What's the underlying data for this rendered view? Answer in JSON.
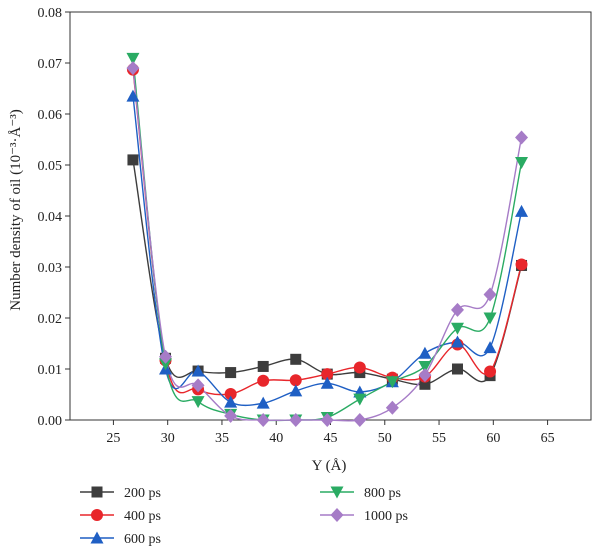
{
  "chart_data": {
    "type": "line",
    "title": "",
    "xlabel": "Y (Å)",
    "ylabel": "Number density of oil (10⁻³·Å⁻³)",
    "xlim": [
      21,
      69
    ],
    "ylim": [
      0,
      0.08
    ],
    "xticks": [
      25,
      30,
      35,
      40,
      45,
      50,
      55,
      60,
      65
    ],
    "yticks": [
      0.0,
      0.01,
      0.02,
      0.03,
      0.04,
      0.05,
      0.06,
      0.07,
      0.08
    ],
    "ytick_labels": [
      "0.00",
      "0.01",
      "0.02",
      "0.03",
      "0.04",
      "0.05",
      "0.06",
      "0.07",
      "0.08"
    ],
    "grid": false,
    "legend_position": "bottom",
    "x": [
      26.8,
      29.8,
      32.8,
      35.8,
      38.8,
      41.8,
      44.7,
      47.7,
      50.7,
      53.7,
      56.7,
      59.7,
      62.6
    ],
    "series": [
      {
        "name": "200 ps",
        "marker": "square",
        "color": "#3d3d3d",
        "values": [
          0.051,
          0.0121,
          0.0096,
          0.0093,
          0.0105,
          0.0119,
          0.009,
          0.0093,
          0.008,
          0.007,
          0.01,
          0.0087,
          0.0303
        ]
      },
      {
        "name": "400 ps",
        "marker": "circle",
        "color": "#e8262b",
        "values": [
          0.0687,
          0.0117,
          0.006,
          0.0051,
          0.0077,
          0.0078,
          0.009,
          0.0103,
          0.0083,
          0.0085,
          0.0148,
          0.0095,
          0.0305
        ]
      },
      {
        "name": "600 ps",
        "marker": "triangle-up",
        "color": "#1f5fc4",
        "values": [
          0.0635,
          0.01,
          0.0096,
          0.0035,
          0.0033,
          0.0057,
          0.0072,
          0.0055,
          0.0075,
          0.0131,
          0.0153,
          0.0142,
          0.0409
        ]
      },
      {
        "name": "800 ps",
        "marker": "triangle-down",
        "color": "#2aab63",
        "values": [
          0.0709,
          0.011,
          0.0036,
          0.0011,
          0.0,
          0.0,
          0.0005,
          0.0041,
          0.0075,
          0.0105,
          0.018,
          0.02,
          0.0505
        ]
      },
      {
        "name": "1000 ps",
        "marker": "diamond",
        "color": "#a67cc7",
        "values": [
          0.069,
          0.0124,
          0.0068,
          0.0008,
          0.0,
          0.0,
          0.0,
          0.0,
          0.0024,
          0.0088,
          0.0216,
          0.0246,
          0.0554
        ]
      }
    ]
  }
}
